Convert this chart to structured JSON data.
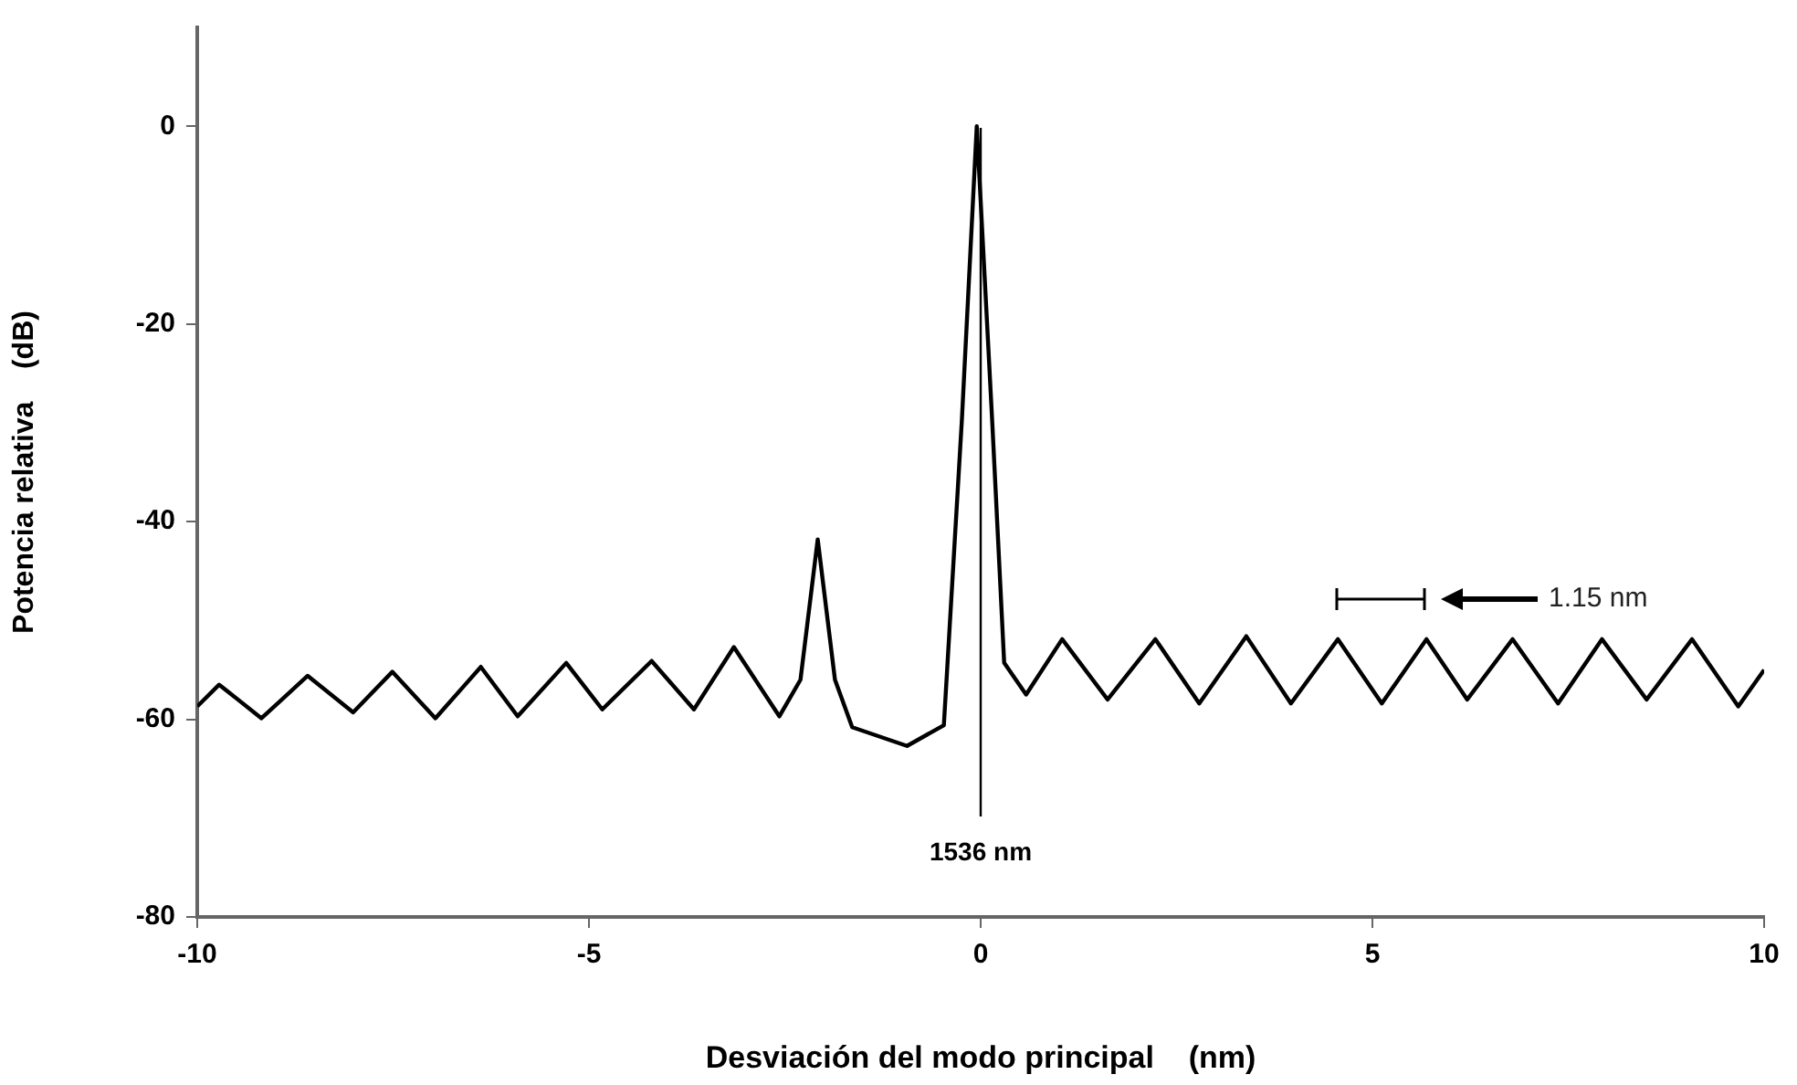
{
  "chart_data": {
    "type": "line",
    "xlabel": "Desviación del modo principal    (nm)",
    "ylabel": "Potencia relativa    (dB)",
    "xlim": [
      -10,
      10
    ],
    "xticks": [
      -10,
      -5,
      0,
      5,
      10
    ],
    "ylim": [
      -80,
      10
    ],
    "yticks": [
      -80,
      -60,
      -40,
      -20,
      0
    ],
    "grid": false,
    "legend": false,
    "marker": "none",
    "line_style": "solid",
    "series": [
      {
        "color": "#000000",
        "x": [
          -10.0,
          -9.72,
          -9.18,
          -8.59,
          -8.01,
          -7.51,
          -6.96,
          -6.38,
          -5.91,
          -5.29,
          -4.83,
          -4.2,
          -3.66,
          -3.15,
          -2.57,
          -2.3,
          -2.08,
          -1.86,
          -1.64,
          -0.94,
          -0.47,
          -0.24,
          -0.05,
          0.15,
          0.3,
          0.58,
          1.04,
          1.62,
          2.23,
          2.79,
          3.39,
          3.96,
          4.56,
          5.12,
          5.69,
          6.21,
          6.79,
          7.37,
          7.93,
          8.5,
          9.08,
          9.67,
          10.0
        ],
        "values": [
          -58.7,
          -56.5,
          -59.9,
          -55.6,
          -59.3,
          -55.2,
          -59.9,
          -54.7,
          -59.7,
          -54.3,
          -59.0,
          -54.1,
          -59.0,
          -52.7,
          -59.7,
          -56.0,
          -41.8,
          -56.0,
          -60.8,
          -62.7,
          -60.6,
          -29.7,
          0,
          -30.3,
          -54.3,
          -57.5,
          -51.9,
          -58.0,
          -51.9,
          -58.4,
          -51.6,
          -58.4,
          -51.9,
          -58.4,
          -51.9,
          -58.0,
          -51.9,
          -58.4,
          -51.9,
          -58.0,
          -51.9,
          -58.7,
          -55.0
        ]
      }
    ],
    "ref_lines": [
      {
        "axis": "x",
        "value": 0,
        "label": "1536 nm",
        "color": "#000000"
      }
    ],
    "annotations": [
      "1.15 nm"
    ]
  }
}
